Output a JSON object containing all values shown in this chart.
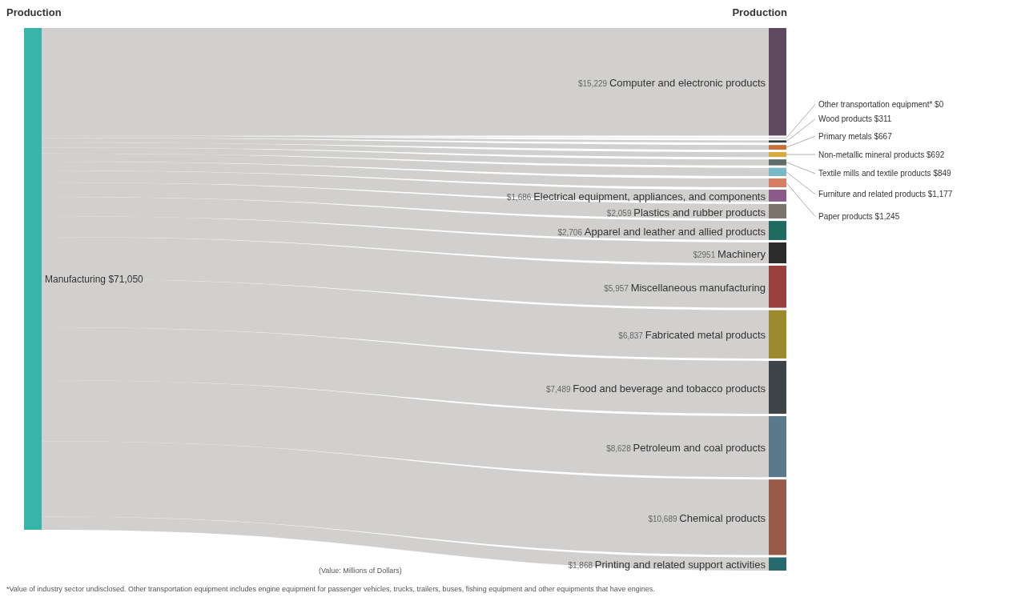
{
  "chart_data": {
    "type": "other",
    "categories": [
      "Manufacturing",
      "Computer and electronic products",
      "Other transportation equipment*",
      "Wood products",
      "Primary metals",
      "Non-metallic mineral products",
      "Textile mills and textile products",
      "Furniture and related products",
      "Paper products",
      "Electrical equipment, appliances, and components",
      "Plastics and rubber products",
      "Apparel and leather and allied products",
      "Machinery",
      "Miscellaneous manufacturing",
      "Fabricated metal products",
      "Food and beverage and tobacco products",
      "Petroleum and coal products",
      "Chemical products",
      "Printing and related support activities"
    ],
    "values": [
      71050,
      15229,
      0,
      311,
      667,
      692,
      849,
      1177,
      1245,
      1686,
      2059,
      2706,
      2951,
      5957,
      6837,
      7489,
      8628,
      10689,
      1868
    ],
    "value_labels": [
      "$71,050",
      "$15,229",
      "$0",
      "$311",
      "$667",
      "$692",
      "$849",
      "$1,177",
      "$1,245",
      "$1,686",
      "$2,059",
      "$2,706",
      "$2951",
      "$5,957",
      "$6,837",
      "$7,489",
      "$8,628",
      "$10,689",
      "$1,868"
    ],
    "colors": [
      "#36b5a8",
      "#5e4a5e",
      "#6e6e6e",
      "#2e3b3f",
      "#c9703a",
      "#d8a93c",
      "#5f6e6a",
      "#7ab8c8",
      "#d77d63",
      "#8c5a8a",
      "#7d726c",
      "#1f6b5f",
      "#2b2b2b",
      "#9c3f3f",
      "#9c8a2e",
      "#3e4448",
      "#5a7a8c",
      "#9a5a48",
      "#266a6e"
    ],
    "xlabel": "Production",
    "annotations": [
      "Production",
      "(Value: Millions of Dollars)",
      "*Value of industry sector undisclosed. Other transportation equipment includes engine equipment for passenger vehicles, trucks, trailers, buses, fishing equipment and other equipments that have engines."
    ]
  }
}
